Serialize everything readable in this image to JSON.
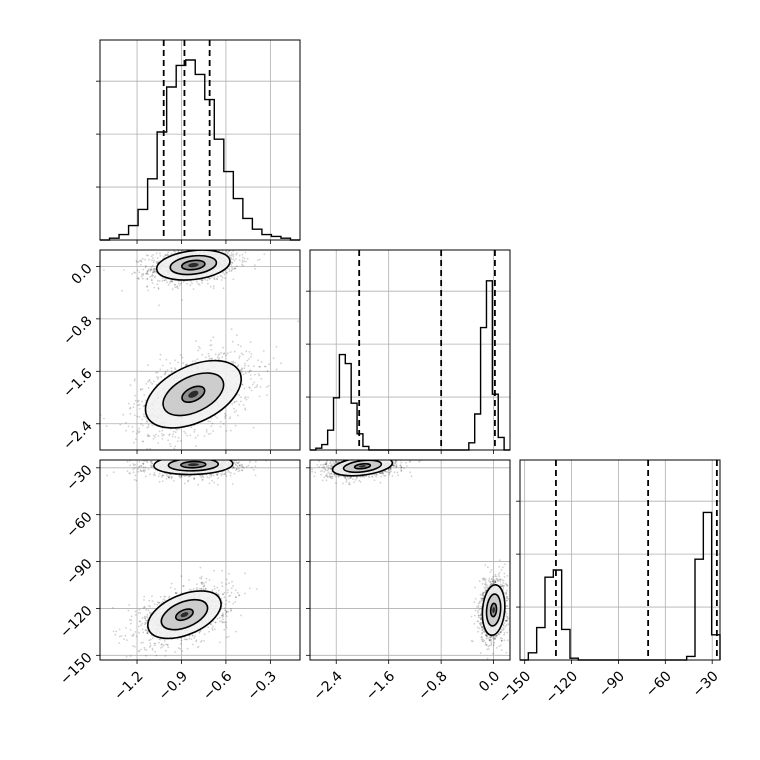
{
  "chart_data": {
    "type": "corner",
    "grid": true,
    "colors": {
      "line": "#000000",
      "grid": "#b0b0b0",
      "points": "#000000"
    },
    "parameters": [
      {
        "range": [
          -1.45,
          -0.1
        ],
        "ticks": [
          -1.2,
          -0.9,
          -0.6,
          -0.3
        ],
        "tick_labels": [
          "−1.2",
          "−0.9",
          "−0.6",
          "−0.3"
        ]
      },
      {
        "range": [
          -2.8,
          0.25
        ],
        "ticks": [
          -2.4,
          -1.6,
          -0.8,
          0.0
        ],
        "tick_labels": [
          "−2.4",
          "−1.6",
          "−0.8",
          "0.0"
        ]
      },
      {
        "range": [
          -153,
          -25
        ],
        "ticks": [
          -150,
          -120,
          -90,
          -60,
          -30
        ],
        "tick_labels": [
          "−150",
          "−120",
          "−90",
          "−60",
          "−30"
        ]
      }
    ],
    "histograms": [
      {
        "param": 0,
        "ymax": 1.0,
        "quantiles": [
          -1.02,
          -0.88,
          -0.71
        ],
        "counts": [
          0.0,
          0.01,
          0.03,
          0.08,
          0.17,
          0.34,
          0.6,
          0.85,
          0.97,
          1.0,
          0.92,
          0.78,
          0.56,
          0.38,
          0.23,
          0.12,
          0.06,
          0.03,
          0.02,
          0.01,
          0.0
        ]
      },
      {
        "param": 1,
        "ymax": 1.0,
        "quantiles": [
          -2.05,
          -0.8,
          0.02
        ],
        "counts": [
          0.0,
          0.01,
          0.03,
          0.11,
          0.29,
          0.53,
          0.48,
          0.26,
          0.09,
          0.02,
          0.0,
          0.0,
          0.0,
          0.0,
          0.0,
          0.0,
          0.0,
          0.0,
          0.0,
          0.0,
          0.0,
          0.0,
          0.0,
          0.0,
          0.0,
          0.0,
          0.0,
          0.04,
          0.2,
          0.68,
          0.94,
          0.31,
          0.07,
          0.0
        ]
      },
      {
        "param": 2,
        "ymax": 1.0,
        "quantiles": [
          -130,
          -71,
          -27
        ],
        "counts": [
          0.0,
          0.04,
          0.18,
          0.46,
          0.5,
          0.17,
          0.01,
          0.0,
          0.0,
          0.0,
          0.0,
          0.0,
          0.0,
          0.0,
          0.0,
          0.0,
          0.0,
          0.0,
          0.0,
          0.0,
          0.02,
          0.56,
          0.82,
          0.14
        ]
      }
    ],
    "panels_2d": [
      {
        "x_param": 0,
        "y_param": 1,
        "clusters": [
          {
            "center": [
              -0.82,
              0.02
            ],
            "sx": 0.13,
            "sy": 0.12,
            "rho": 0.25,
            "n": 1300,
            "levels": [
              0.6,
              1.2,
              1.9
            ]
          },
          {
            "center": [
              -0.82,
              -1.95
            ],
            "sx": 0.17,
            "sy": 0.27,
            "rho": 0.45,
            "n": 1300,
            "levels": [
              0.45,
              1.2,
              1.9
            ]
          }
        ]
      },
      {
        "x_param": 0,
        "y_param": 2,
        "clusters": [
          {
            "center": [
              -0.82,
              -28
            ],
            "sx": 0.14,
            "sy": 3.3,
            "rho": 0.1,
            "n": 1300,
            "levels": [
              0.6,
              1.2,
              1.9
            ]
          },
          {
            "center": [
              -0.88,
              -124
            ],
            "sx": 0.13,
            "sy": 8.0,
            "rho": 0.45,
            "n": 1300,
            "levels": [
              0.45,
              1.2,
              1.9
            ]
          }
        ]
      },
      {
        "x_param": 1,
        "y_param": 2,
        "clusters": [
          {
            "center": [
              -2.0,
              -29
            ],
            "sx": 0.24,
            "sy": 3.2,
            "rho": 0.35,
            "n": 1300,
            "levels": [
              0.5,
              1.2,
              1.9
            ]
          },
          {
            "center": [
              0.0,
              -121
            ],
            "sx": 0.09,
            "sy": 8.5,
            "rho": 0.15,
            "n": 1300,
            "levels": [
              0.5,
              1.2,
              1.9
            ]
          }
        ]
      }
    ]
  }
}
